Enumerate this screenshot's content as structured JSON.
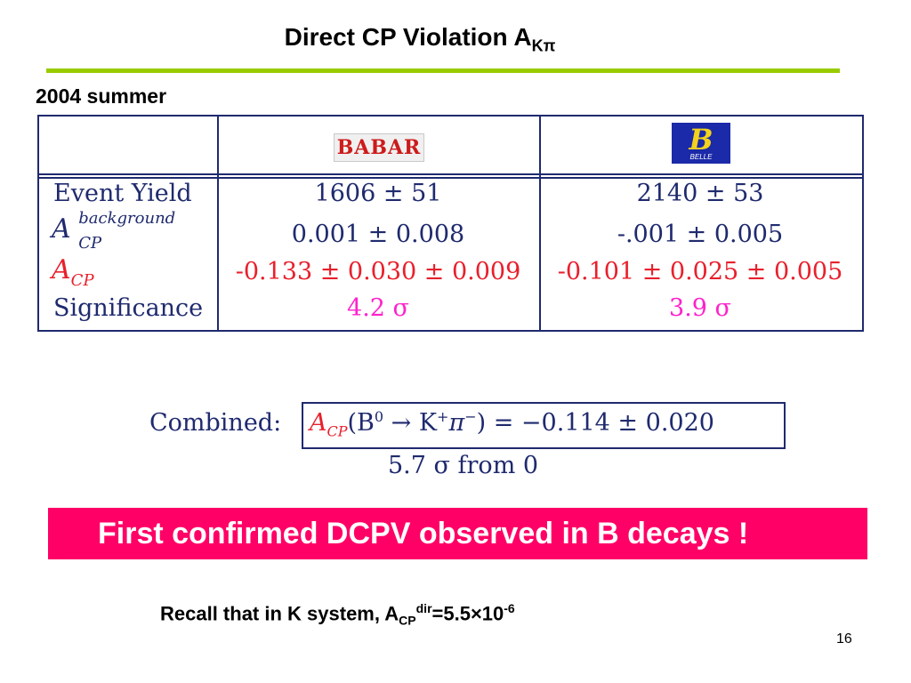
{
  "slide": {
    "title": "Direct CP Violation  A",
    "title_sub": "Kπ",
    "date_label": "2004 summer",
    "page_number": "16"
  },
  "table": {
    "experiments": [
      {
        "name": "BABAR",
        "logo": "babar-logo"
      },
      {
        "name": "BELLE",
        "logo": "belle-logo"
      }
    ],
    "rows": [
      {
        "label": "Event Yield",
        "babar": "1606 ± 51",
        "belle": "2140 ± 53",
        "color": "#1f2a6e"
      },
      {
        "label_main": "A",
        "label_sub": "CP",
        "label_sup": "background",
        "babar": "0.001 ± 0.008",
        "belle": "-.001 ± 0.005",
        "color": "#1f2a6e"
      },
      {
        "label_main": "A",
        "label_sub": "CP",
        "babar": "-0.133 ± 0.030 ± 0.009",
        "belle": "-0.101 ± 0.025 ± 0.005",
        "color": "#e8202c"
      },
      {
        "label": "Significance",
        "babar": "4.2 σ",
        "belle": "3.9 σ",
        "color": "#ff22cc"
      }
    ]
  },
  "combined": {
    "label": "Combined:",
    "acp": "A",
    "acp_sub": "CP",
    "lhs_open": "(B",
    "b_sup": "0",
    "arrow": " → K",
    "k_sup": "+",
    "pi": "π",
    "pi_sup": "−",
    "rhs": ") = −0.114 ± 0.020",
    "significance": "5.7 σ from 0"
  },
  "banner": {
    "text": "First confirmed DCPV observed in B decays !",
    "color": "#ff0066"
  },
  "recall": {
    "prefix": "Recall that in K system, A",
    "sub": "CP",
    "sup": "dir",
    "middle": "=5.5×10",
    "exp": "-6"
  },
  "colors": {
    "rule": "#99cc00",
    "table_border": "#1f2a6e",
    "red_text": "#e8202c",
    "pink_text": "#ff22cc"
  }
}
